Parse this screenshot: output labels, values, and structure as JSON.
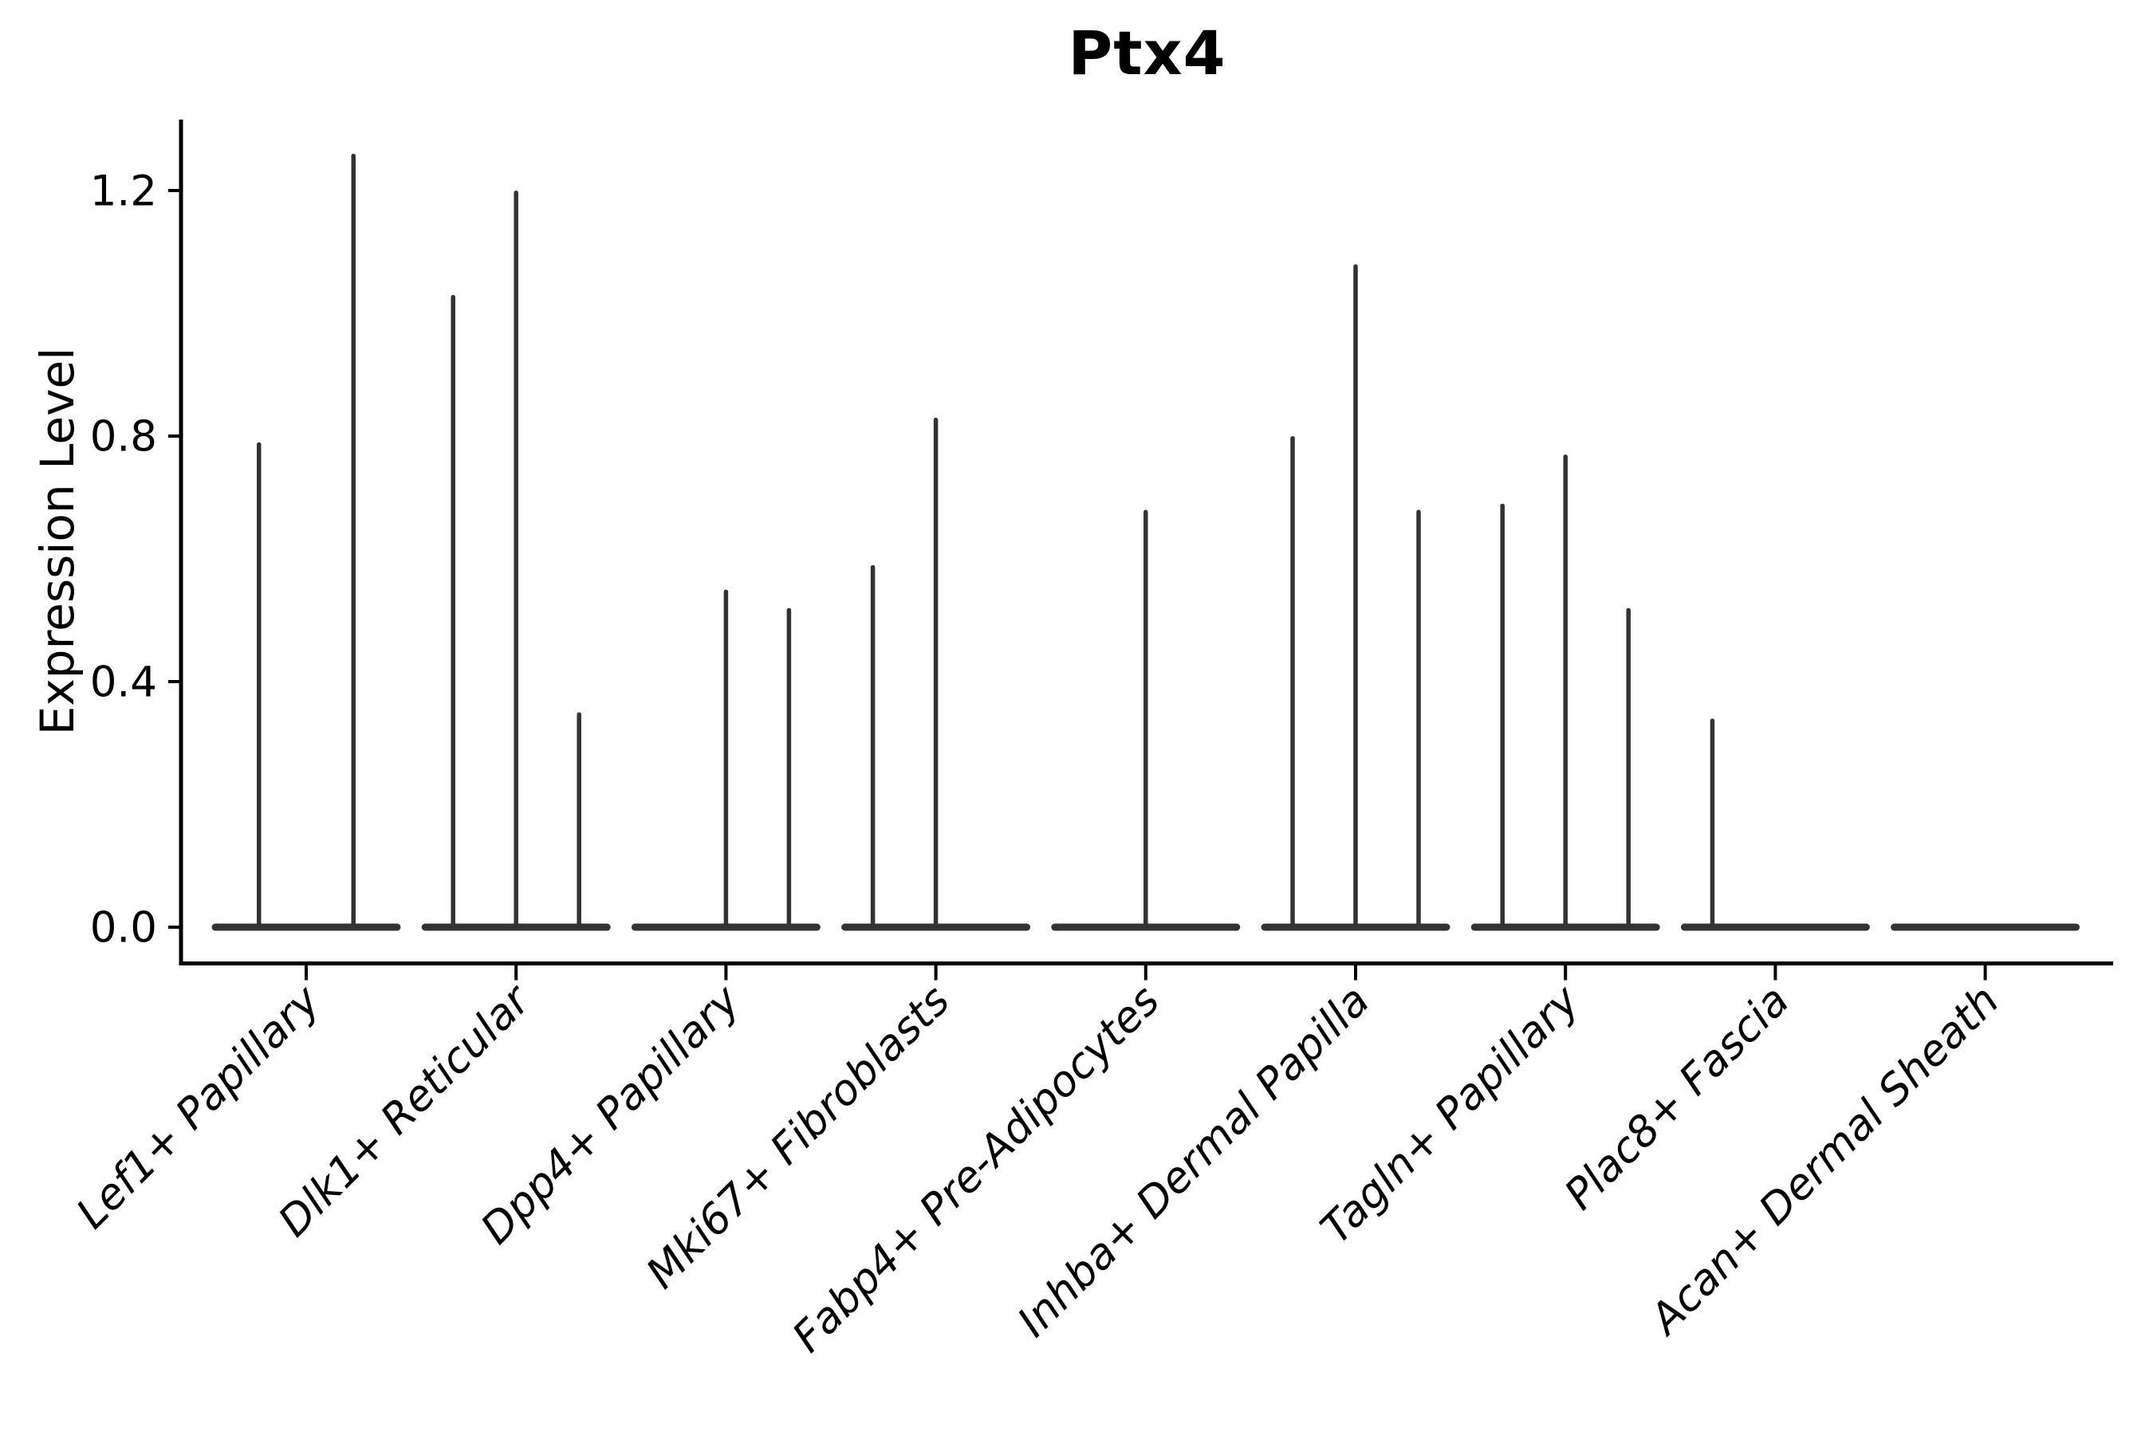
{
  "title": "Ptx4",
  "y_axis": {
    "label": "Expression Level",
    "tick_labels": [
      "0.0",
      "0.4",
      "0.8",
      "1.2"
    ]
  },
  "chart_data": {
    "type": "violin",
    "title": "Ptx4",
    "xlabel": "",
    "ylabel": "Expression Level",
    "ylim": [
      0,
      1.32
    ],
    "y_ticks": [
      0.0,
      0.4,
      0.8,
      1.2
    ],
    "grid": false,
    "legend": "none",
    "categories": [
      "Lef1+ Papillary",
      "Dlk1+ Reticular",
      "Dpp4+ Papillary",
      "Mki67+ Fibroblasts",
      "Fabp4+ Pre-Adipocytes",
      "Inhba+ Dermal Papilla",
      "Tagln+ Papillary",
      "Plac8+ Fascia",
      "Acan+ Dermal Sheath"
    ],
    "groups": [
      {
        "category": "Lef1+ Papillary",
        "violins": [
          {
            "pos": 0.25,
            "max": 0.79
          },
          {
            "pos": 0.75,
            "max": 1.26
          }
        ]
      },
      {
        "category": "Dlk1+ Reticular",
        "violins": [
          {
            "pos": 0.1667,
            "max": 1.03
          },
          {
            "pos": 0.5,
            "max": 1.2
          },
          {
            "pos": 0.8333,
            "max": 0.35
          }
        ]
      },
      {
        "category": "Dpp4+ Papillary",
        "violins": [
          {
            "pos": 0.1667,
            "max": 0.0
          },
          {
            "pos": 0.5,
            "max": 0.55
          },
          {
            "pos": 0.8333,
            "max": 0.52
          }
        ]
      },
      {
        "category": "Mki67+ Fibroblasts",
        "violins": [
          {
            "pos": 0.1667,
            "max": 0.59
          },
          {
            "pos": 0.5,
            "max": 0.83
          },
          {
            "pos": 0.8333,
            "max": 0.0
          }
        ]
      },
      {
        "category": "Fabp4+ Pre-Adipocytes",
        "violins": [
          {
            "pos": 0.5,
            "max": 0.68
          }
        ]
      },
      {
        "category": "Inhba+ Dermal Papilla",
        "violins": [
          {
            "pos": 0.1667,
            "max": 0.8
          },
          {
            "pos": 0.5,
            "max": 1.08
          },
          {
            "pos": 0.8333,
            "max": 0.68
          }
        ]
      },
      {
        "category": "Tagln+ Papillary",
        "violins": [
          {
            "pos": 0.1667,
            "max": 0.69
          },
          {
            "pos": 0.5,
            "max": 0.77
          },
          {
            "pos": 0.8333,
            "max": 0.52
          }
        ]
      },
      {
        "category": "Plac8+ Fascia",
        "violins": [
          {
            "pos": 0.1667,
            "max": 0.34
          },
          {
            "pos": 0.5,
            "max": 0.0
          },
          {
            "pos": 0.8333,
            "max": 0.0
          }
        ]
      },
      {
        "category": "Acan+ Dermal Sheath",
        "violins": [
          {
            "pos": 0.5,
            "max": 0.0
          }
        ]
      }
    ],
    "baseline_value": 0.0,
    "colors": {
      "violin": "#333333",
      "axis": "#000000",
      "text": "#000000",
      "background": "#ffffff"
    }
  }
}
